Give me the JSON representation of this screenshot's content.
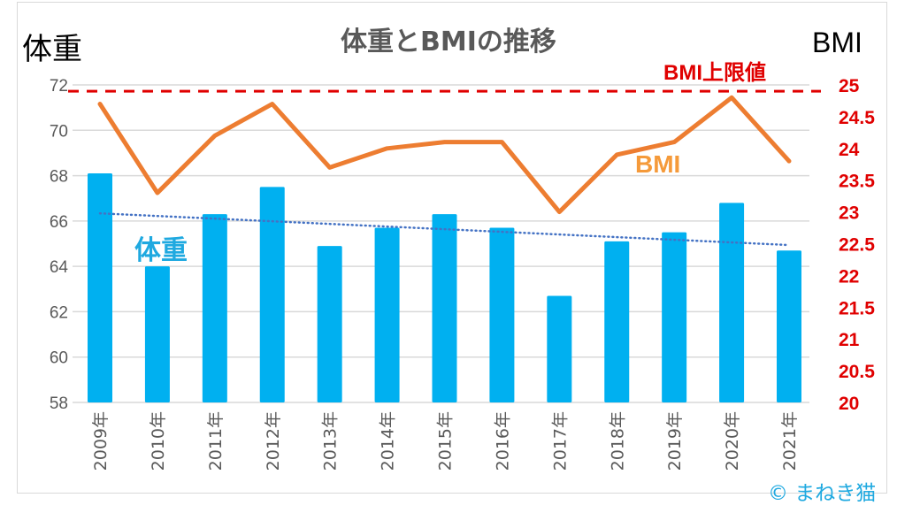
{
  "chart_data": {
    "type": "bar+line",
    "title": "体重とBMIの推移",
    "categories": [
      "2009年",
      "2010年",
      "2011年",
      "2012年",
      "2013年",
      "2014年",
      "2015年",
      "2016年",
      "2017年",
      "2018年",
      "2019年",
      "2020年",
      "2021年"
    ],
    "series": [
      {
        "name": "体重",
        "type": "bar",
        "axis": "left",
        "color": "#00b0f0",
        "values": [
          68.1,
          64.0,
          66.3,
          67.5,
          64.9,
          65.7,
          66.3,
          65.7,
          62.7,
          65.1,
          65.5,
          66.8,
          64.7
        ],
        "trendline": {
          "type": "linear",
          "style": "dotted",
          "color": "#4472c4"
        }
      },
      {
        "name": "BMI",
        "type": "line",
        "axis": "right",
        "color": "#ed7d31",
        "values": [
          24.7,
          23.3,
          24.2,
          24.7,
          23.7,
          24.0,
          24.1,
          24.1,
          23.0,
          23.9,
          24.1,
          24.8,
          23.8
        ]
      }
    ],
    "reference_line": {
      "label": "BMI上限値",
      "axis": "right",
      "value": 24.9,
      "color": "#e00000",
      "style": "dashed"
    },
    "y_left": {
      "label": "体重",
      "ylim": [
        58,
        72
      ],
      "ticks": [
        58,
        60,
        62,
        64,
        66,
        68,
        70,
        72
      ]
    },
    "y_right": {
      "label": "BMI",
      "ylim": [
        20,
        25
      ],
      "ticks": [
        "20",
        "20.5",
        "21",
        "21.5",
        "22",
        "22.5",
        "23",
        "23.5",
        "24",
        "24.5",
        "25"
      ],
      "color": "#e00000"
    },
    "grid": true,
    "annotations": {
      "weight_label": "体重",
      "bmi_label": "BMI"
    },
    "copyright": "© まねき猫"
  }
}
